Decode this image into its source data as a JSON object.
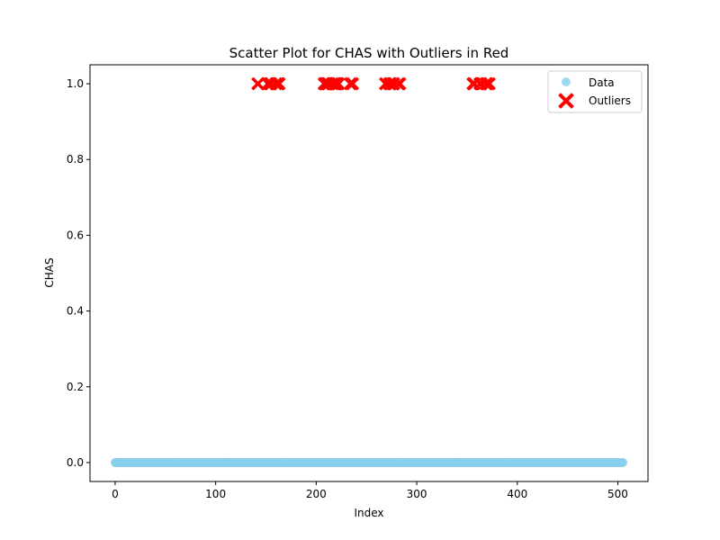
{
  "chart_data": {
    "type": "scatter",
    "title": "Scatter Plot for CHAS with Outliers in Red",
    "xlabel": "Index",
    "ylabel": "CHAS",
    "xlim": [
      -25,
      530
    ],
    "ylim": [
      -0.05,
      1.05
    ],
    "x_ticks": [
      0,
      100,
      200,
      300,
      400,
      500
    ],
    "y_ticks": [
      0.0,
      0.2,
      0.4,
      0.6,
      0.8,
      1.0
    ],
    "x_tick_labels": [
      "0",
      "100",
      "200",
      "300",
      "400",
      "500"
    ],
    "y_tick_labels": [
      "0.0",
      "0.2",
      "0.4",
      "0.6",
      "0.8",
      "1.0"
    ],
    "grid": false,
    "legend": {
      "position": "top-right",
      "entries": [
        "Data",
        "Outliers"
      ]
    },
    "colors": {
      "data": "#87CEEB",
      "outliers": "#FF0000"
    },
    "series": [
      {
        "name": "Data",
        "marker": "circle",
        "color": "#87CEEB",
        "y_value": 0,
        "x": [
          0,
          505
        ]
      },
      {
        "name": "Outliers",
        "marker": "x",
        "color": "#FF0000",
        "y_value": 1,
        "x": [
          142,
          152,
          154,
          155,
          160,
          162,
          163,
          208,
          209,
          210,
          211,
          212,
          216,
          218,
          219,
          220,
          221,
          222,
          234,
          236,
          269,
          273,
          274,
          276,
          277,
          282,
          283,
          356,
          357,
          363,
          364,
          369,
          370,
          372
        ]
      }
    ]
  }
}
